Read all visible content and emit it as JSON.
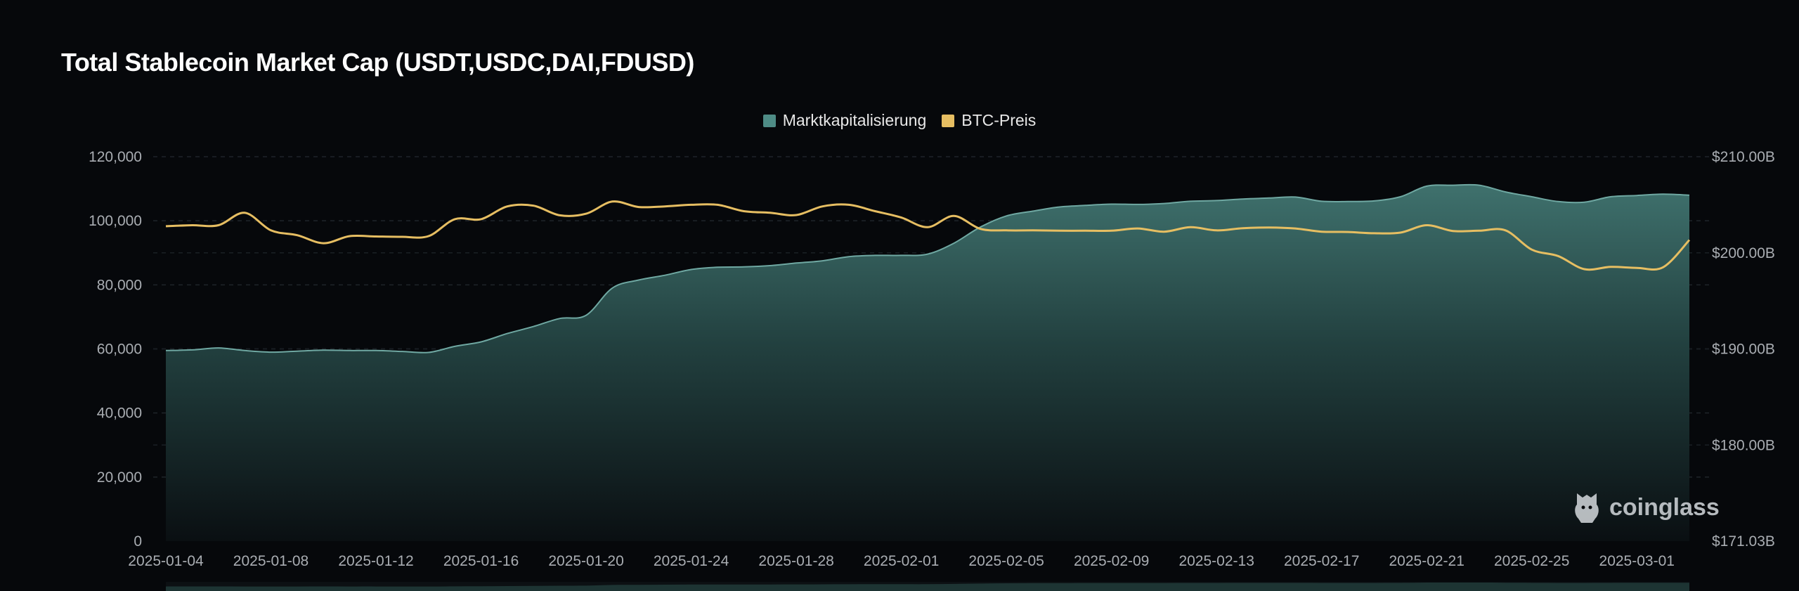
{
  "title": "Total Stablecoin Market Cap (USDT,USDC,DAI,FDUSD)",
  "legend": [
    {
      "label": "Marktkapitalisierung",
      "color": "#4e8c86"
    },
    {
      "label": "BTC-Preis",
      "color": "#e6be62"
    }
  ],
  "watermark": "coinglass",
  "chart_data": {
    "type": "line",
    "x_ticks": [
      "2025-01-04",
      "2025-01-08",
      "2025-01-12",
      "2025-01-16",
      "2025-01-20",
      "2025-01-24",
      "2025-01-28",
      "2025-02-01",
      "2025-02-05",
      "2025-02-09",
      "2025-02-13",
      "2025-02-17",
      "2025-02-21",
      "2025-02-25",
      "2025-03-01"
    ],
    "x_range": [
      "2025-01-04",
      "2025-03-03"
    ],
    "left_axis": {
      "ticks": [
        "120,000",
        "100,000",
        "80,000",
        "60,000",
        "40,000",
        "20,000",
        "0"
      ],
      "range": [
        0,
        120000
      ]
    },
    "right_axis": {
      "ticks": [
        "$210.00B",
        "$200.00B",
        "$190.00B",
        "$180.00B",
        "$171.03B"
      ],
      "range": [
        171.03,
        210
      ]
    },
    "grid": "horizontal dashed",
    "legend_position": "top-center",
    "series": [
      {
        "name": "Marktkapitalisierung",
        "axis": "left",
        "style": "area",
        "color": "#4e8c86",
        "x": [
          "2025-01-04",
          "2025-01-05",
          "2025-01-06",
          "2025-01-07",
          "2025-01-08",
          "2025-01-09",
          "2025-01-10",
          "2025-01-11",
          "2025-01-12",
          "2025-01-13",
          "2025-01-14",
          "2025-01-15",
          "2025-01-16",
          "2025-01-17",
          "2025-01-18",
          "2025-01-19",
          "2025-01-20",
          "2025-01-21",
          "2025-01-22",
          "2025-01-23",
          "2025-01-24",
          "2025-01-25",
          "2025-01-26",
          "2025-01-27",
          "2025-01-28",
          "2025-01-29",
          "2025-01-30",
          "2025-01-31",
          "2025-02-01",
          "2025-02-02",
          "2025-02-03",
          "2025-02-04",
          "2025-02-05",
          "2025-02-06",
          "2025-02-07",
          "2025-02-08",
          "2025-02-09",
          "2025-02-10",
          "2025-02-11",
          "2025-02-12",
          "2025-02-13",
          "2025-02-14",
          "2025-02-15",
          "2025-02-16",
          "2025-02-17",
          "2025-02-18",
          "2025-02-19",
          "2025-02-20",
          "2025-02-21",
          "2025-02-22",
          "2025-02-23",
          "2025-02-24",
          "2025-02-25",
          "2025-02-26",
          "2025-02-27",
          "2025-02-28",
          "2025-03-01",
          "2025-03-02",
          "2025-03-03"
        ],
        "values": [
          59500,
          59700,
          60300,
          59500,
          59000,
          59300,
          59600,
          59500,
          59500,
          59200,
          58900,
          60800,
          62200,
          64800,
          67000,
          69500,
          70500,
          79000,
          81500,
          83000,
          84800,
          85500,
          85600,
          86000,
          86800,
          87500,
          88800,
          89200,
          89200,
          89600,
          93000,
          98000,
          101500,
          103000,
          104300,
          104800,
          105200,
          105100,
          105400,
          106100,
          106300,
          106800,
          107100,
          107400,
          106100,
          106000,
          106200,
          107500,
          110800,
          111100,
          111100,
          109000,
          107500,
          106000,
          105800,
          107500,
          107900,
          108300,
          108000
        ]
      },
      {
        "name": "BTC-Preis",
        "axis": "left",
        "style": "line",
        "color": "#e6be62",
        "x": [
          "2025-01-04",
          "2025-01-05",
          "2025-01-06",
          "2025-01-07",
          "2025-01-08",
          "2025-01-09",
          "2025-01-10",
          "2025-01-11",
          "2025-01-12",
          "2025-01-13",
          "2025-01-14",
          "2025-01-15",
          "2025-01-16",
          "2025-01-17",
          "2025-01-18",
          "2025-01-19",
          "2025-01-20",
          "2025-01-21",
          "2025-01-22",
          "2025-01-23",
          "2025-01-24",
          "2025-01-25",
          "2025-01-26",
          "2025-01-27",
          "2025-01-28",
          "2025-01-29",
          "2025-01-30",
          "2025-01-31",
          "2025-02-01",
          "2025-02-02",
          "2025-02-03",
          "2025-02-04",
          "2025-02-05",
          "2025-02-06",
          "2025-02-07",
          "2025-02-08",
          "2025-02-09",
          "2025-02-10",
          "2025-02-11",
          "2025-02-12",
          "2025-02-13",
          "2025-02-14",
          "2025-02-15",
          "2025-02-16",
          "2025-02-17",
          "2025-02-18",
          "2025-02-19",
          "2025-02-20",
          "2025-02-21",
          "2025-02-22",
          "2025-02-23",
          "2025-02-24",
          "2025-02-25",
          "2025-02-26",
          "2025-02-27",
          "2025-02-28",
          "2025-03-01",
          "2025-03-02",
          "2025-03-03"
        ],
        "values": [
          98300,
          98600,
          98600,
          102500,
          97000,
          95500,
          93000,
          95200,
          95100,
          95000,
          95200,
          100500,
          100500,
          104500,
          104700,
          101700,
          102200,
          106000,
          104300,
          104500,
          105000,
          105000,
          103000,
          102500,
          101800,
          104500,
          105000,
          103000,
          101000,
          98000,
          101500,
          97500,
          97000,
          97000,
          96900,
          96900,
          96900,
          97600,
          96600,
          98000,
          97000,
          97700,
          97900,
          97600,
          96600,
          96500,
          96100,
          96300,
          98600,
          96800,
          96900,
          97000,
          91000,
          89000,
          84900,
          85600,
          85300,
          85500,
          94000
        ]
      }
    ]
  }
}
